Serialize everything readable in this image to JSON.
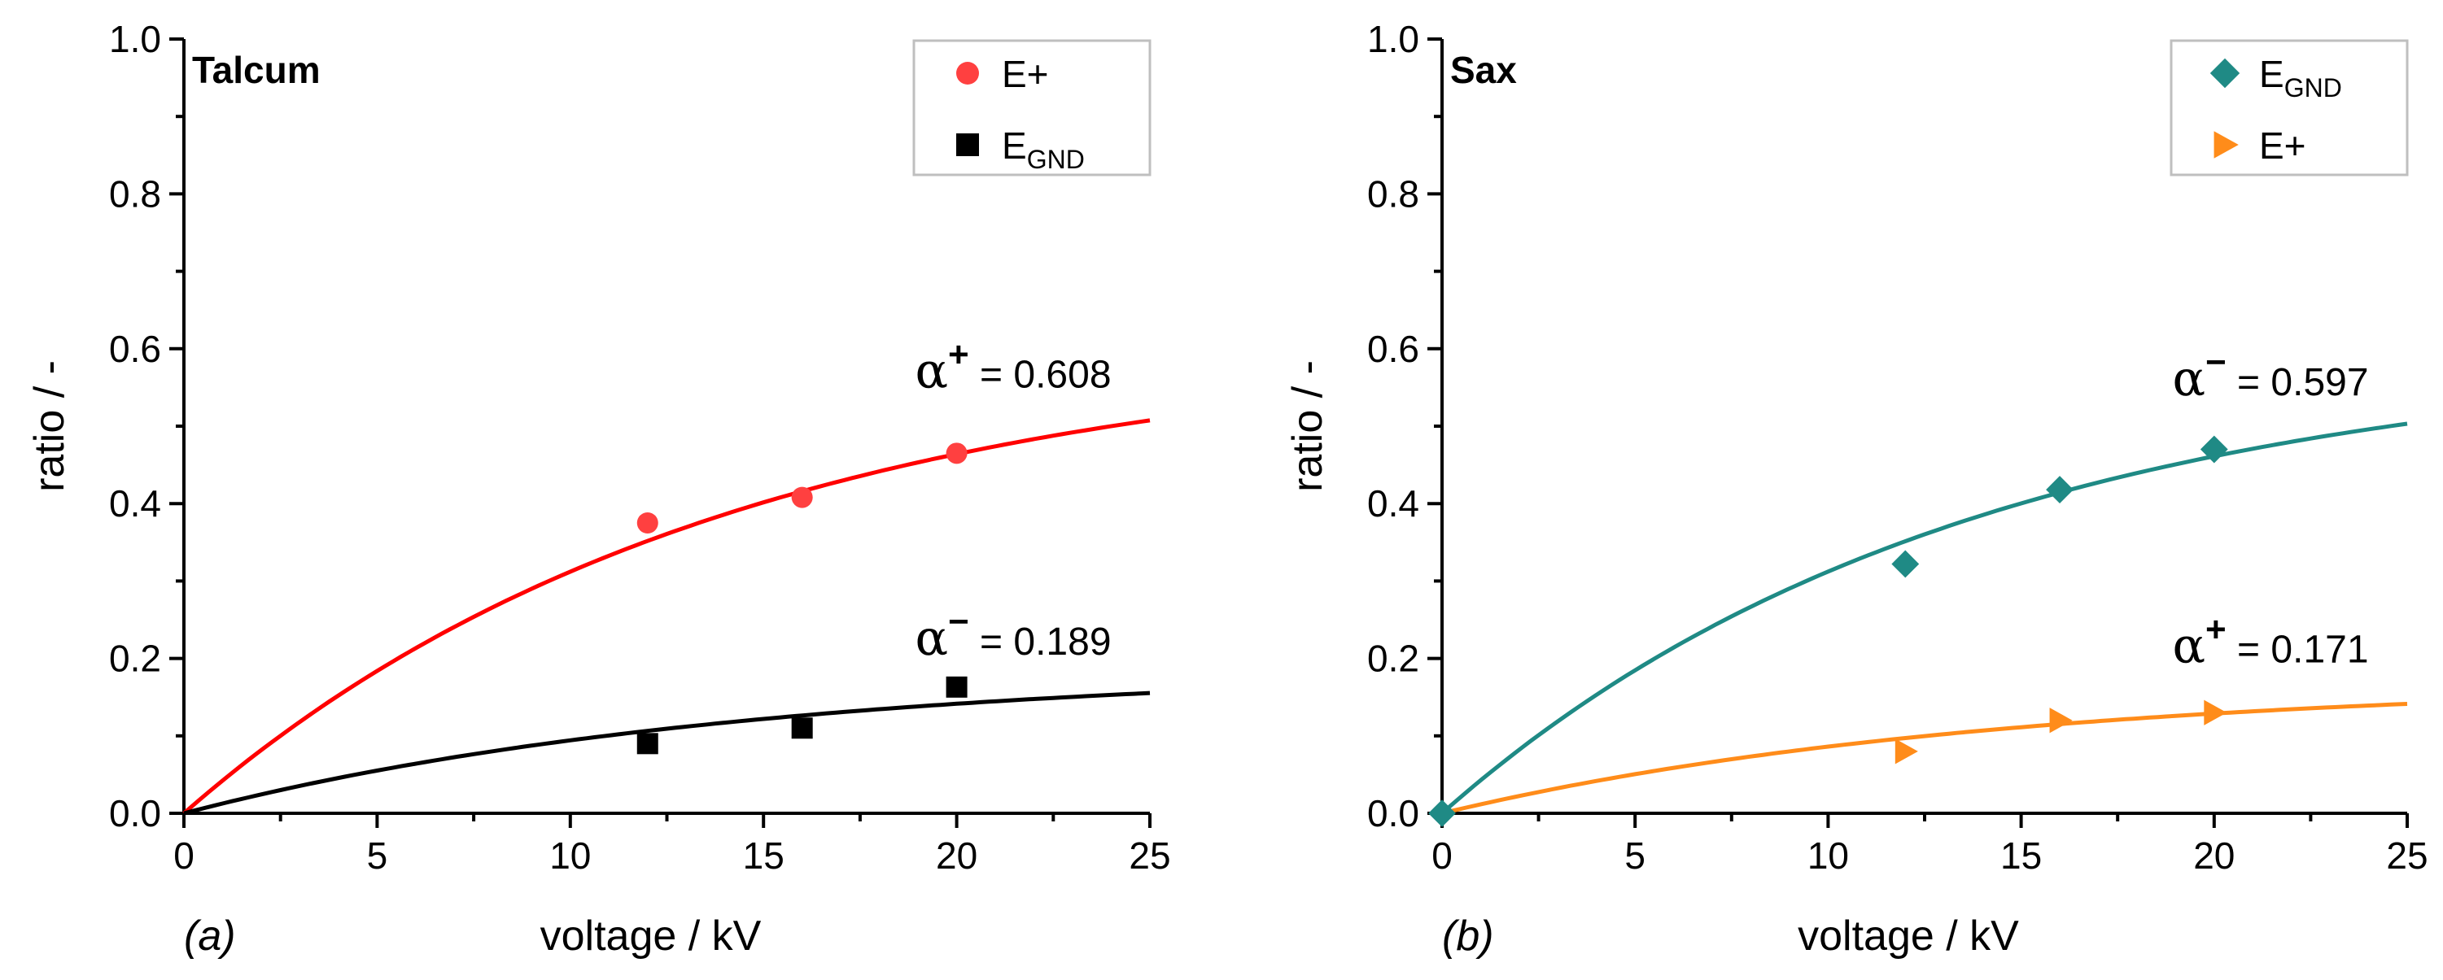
{
  "chart_data": [
    {
      "type": "scatter",
      "panel_tag": "(a)",
      "title": "Talcum",
      "xlabel": "voltage / kV",
      "ylabel": "ratio / -",
      "xlim": [
        0,
        25
      ],
      "ylim": [
        0,
        1.0
      ],
      "xticks": [
        "0",
        "5",
        "10",
        "15",
        "20",
        "25"
      ],
      "yticks": [
        "0.0",
        "0.2",
        "0.4",
        "0.6",
        "0.8",
        "1.0"
      ],
      "legend_position": "top-right",
      "series": [
        {
          "name": "E+",
          "legend_label": "E+",
          "legend_sub": "",
          "color": "#ff4040",
          "marker": "circle",
          "x": [
            12,
            16,
            20
          ],
          "y": [
            0.375,
            0.408,
            0.465
          ],
          "fit": {
            "alpha": 0.608,
            "k": 0.072,
            "color": "#ff0000"
          },
          "annotation": {
            "prefix": "α",
            "sup": "+",
            "text": " = 0.608",
            "x": 24,
            "y": 0.55
          }
        },
        {
          "name": "EGND",
          "legend_label": "E",
          "legend_sub": "GND",
          "color": "#000000",
          "marker": "square",
          "x": [
            12,
            16,
            20
          ],
          "y": [
            0.09,
            0.11,
            0.163
          ],
          "fit": {
            "alpha": 0.189,
            "k": 0.069,
            "color": "#000000"
          },
          "annotation": {
            "prefix": "α",
            "sup": "−",
            "text": " = 0.189",
            "x": 24,
            "y": 0.205
          }
        }
      ]
    },
    {
      "type": "scatter",
      "panel_tag": "(b)",
      "title": "Sax",
      "xlabel": "voltage / kV",
      "ylabel": "ratio / -",
      "xlim": [
        0,
        25
      ],
      "ylim": [
        0,
        1.0
      ],
      "xticks": [
        "0",
        "5",
        "10",
        "15",
        "20",
        "25"
      ],
      "yticks": [
        "0.0",
        "0.2",
        "0.4",
        "0.6",
        "0.8",
        "1.0"
      ],
      "legend_position": "top-right",
      "series": [
        {
          "name": "EGND",
          "legend_label": "E",
          "legend_sub": "GND",
          "color": "#1f8a85",
          "marker": "diamond",
          "x": [
            0,
            12,
            16,
            20
          ],
          "y": [
            0.0,
            0.322,
            0.418,
            0.47
          ],
          "fit": {
            "alpha": 0.597,
            "k": 0.074,
            "color": "#1f8a85"
          },
          "annotation": {
            "prefix": "α",
            "sup": "−",
            "text": " = 0.597",
            "x": 24,
            "y": 0.54
          }
        },
        {
          "name": "E+",
          "legend_label": "E+",
          "legend_sub": "",
          "color": "#ff8c1a",
          "marker": "triangle-right",
          "x": [
            12,
            16,
            20
          ],
          "y": [
            0.08,
            0.12,
            0.13
          ],
          "fit": {
            "alpha": 0.171,
            "k": 0.07,
            "color": "#ff8c1a"
          },
          "annotation": {
            "prefix": "α",
            "sup": "+",
            "text": " = 0.171",
            "x": 24,
            "y": 0.195
          }
        }
      ]
    }
  ]
}
